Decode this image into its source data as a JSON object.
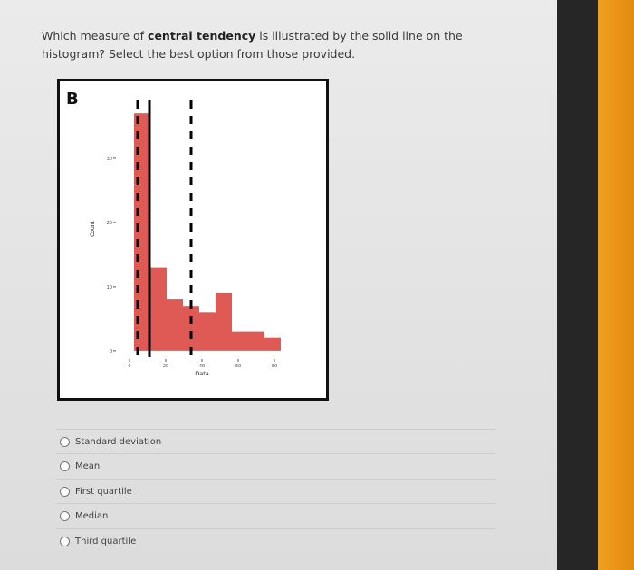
{
  "question": {
    "parts": [
      "Which measure of ",
      "central tendency",
      " is illustrated by the solid line on the histogram? Select the best option from those provided."
    ]
  },
  "panel_label": "B",
  "chart_data": {
    "type": "histogram",
    "xlabel": "Data",
    "ylabel": "Count",
    "bins": [
      2.5,
      11.5,
      20.5,
      29.5,
      38.5,
      47.5,
      56.5,
      65.5,
      74.5,
      83.5
    ],
    "counts": [
      37,
      13,
      8,
      7,
      6,
      9,
      3,
      3,
      2
    ],
    "color": "#e05a55",
    "lines": [
      {
        "x": 4.5,
        "style": "dashed"
      },
      {
        "x": 11,
        "style": "solid"
      },
      {
        "x": 34,
        "style": "dashed"
      }
    ],
    "line_color": "#000000",
    "xlim": [
      -7,
      88
    ],
    "ylim": [
      -1,
      39
    ],
    "xticks": [
      0,
      20,
      40,
      60,
      80
    ],
    "yticks": [
      0,
      10,
      20,
      30
    ]
  },
  "options": [
    "Standard deviation",
    "Mean",
    "First quartile",
    "Median",
    "Third quartile"
  ]
}
